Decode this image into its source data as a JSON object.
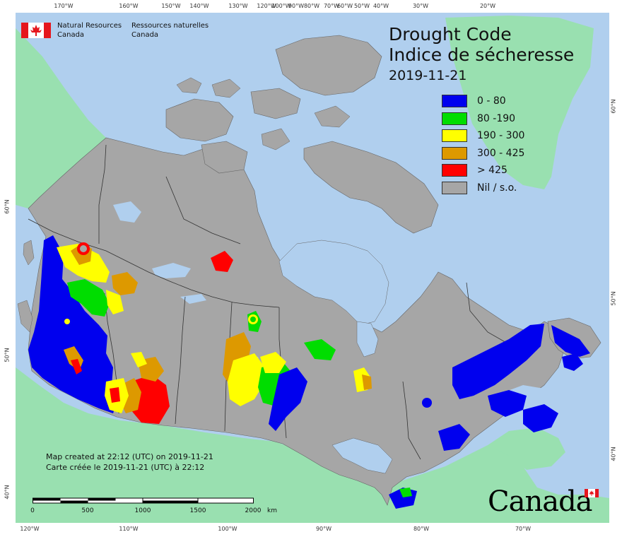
{
  "chart_data": {
    "type": "map",
    "title": "Drought Code",
    "subtitle_fr": "Indice de sécheresse",
    "date": "2019-11-21",
    "legend": [
      {
        "label": "0 - 80",
        "color": "#0000ee"
      },
      {
        "label": "80 -190",
        "color": "#00dd00"
      },
      {
        "label": "190 - 300",
        "color": "#ffff00"
      },
      {
        "label": "300 - 425",
        "color": "#dd9900"
      },
      {
        "label": "> 425",
        "color": "#ff0000"
      },
      {
        "label": "Nil / s.o.",
        "color": "#a6a6a6"
      }
    ],
    "legend_placement": "top-right",
    "longitude_ticks_top": [
      "170°W",
      "160°W",
      "150°W",
      "140°W",
      "130°W",
      "120°W",
      "100°W",
      "90°W",
      "80°W",
      "70°W",
      "60°W",
      "50°W",
      "40°W",
      "30°W",
      "20°W"
    ],
    "longitude_ticks_bottom": [
      "120°W",
      "110°W",
      "100°W",
      "90°W",
      "80°W",
      "70°W"
    ],
    "latitude_ticks_left": [
      "60°N",
      "50°N",
      "40°N"
    ],
    "latitude_ticks_right": [
      "60°N",
      "50°N",
      "40°N"
    ],
    "scale_bar": {
      "labels": [
        "0",
        "500",
        "1000",
        "1500",
        "2000"
      ],
      "unit": "km"
    }
  },
  "agency": {
    "en_line1": "Natural Resources",
    "en_line2": "Canada",
    "fr_line1": "Ressources naturelles",
    "fr_line2": "Canada"
  },
  "credits": {
    "en": "Map created at 22:12 (UTC) on 2019-11-21",
    "fr": "Carte créée le 2019-11-21 (UTC) à 22:12"
  },
  "wordmark": "Canada",
  "colors": {
    "ocean": "#b0cfee",
    "foreign_land": "#99e0b0",
    "canada_nil": "#a6a6a6",
    "lake": "#b0cfee",
    "border": "#333333"
  },
  "icons": {
    "agency_flag": "canadian-flag-icon",
    "wordmark_flag": "canadian-flag-icon"
  }
}
